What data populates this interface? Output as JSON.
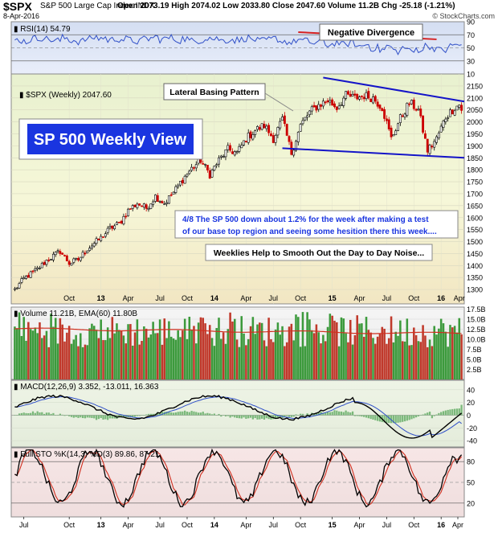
{
  "header": {
    "symbol": "$SPX",
    "name": "S&P 500 Large Cap Index",
    "exchange": "INDX",
    "date": "8-Apr-2016",
    "ohlc": "Open 2073.19  High 2074.02  Low 2033.80  Close 2047.60  Volume 11.2B  Chg -25.18 (-1.21%)",
    "credit": "© StockCharts.com"
  },
  "colors": {
    "up": "#000000",
    "down": "#cc0000",
    "vol_up": "#3c9a3c",
    "vol_down": "#c0392b",
    "trend": "#1414c8",
    "rsi_line": "#3050c8",
    "macd_line": "#000000",
    "signal_line": "#3050c8",
    "k_line": "#000000",
    "d_line": "#d03020",
    "ema_line": "#d03020",
    "divergence": "#d62020",
    "title_box_bg": "#1a35e0"
  },
  "chart_data": [
    {
      "type": "line",
      "panel": "RSI",
      "label": "RSI(14) 54.79",
      "ylim": [
        10,
        90
      ],
      "ticks": [
        10,
        30,
        50,
        70,
        90
      ],
      "series": [
        {
          "name": "RSI(14)",
          "values": [
            62,
            60,
            64,
            66,
            63,
            61,
            65,
            62,
            60,
            63,
            66,
            65,
            62,
            64,
            63,
            61,
            60,
            64,
            66,
            63,
            65,
            62,
            64,
            60,
            62,
            66,
            64,
            61,
            63,
            62,
            65,
            63,
            60,
            62,
            64,
            60,
            58,
            62,
            60,
            57,
            60,
            55,
            58,
            54,
            57,
            52,
            55,
            50,
            47,
            52,
            45,
            50,
            44,
            48,
            53,
            50,
            46,
            52,
            55,
            54.79
          ]
        }
      ],
      "annotation": "Negative Divergence"
    },
    {
      "type": "candlestick",
      "panel": "Price",
      "label": "$SPX (Weekly) 2047.60",
      "title": "SP 500 Weekly View",
      "ylim": [
        1240,
        2200
      ],
      "ticks": [
        1300,
        1350,
        1400,
        1450,
        1500,
        1550,
        1600,
        1650,
        1700,
        1750,
        1800,
        1850,
        1900,
        1950,
        2000,
        2050,
        2100,
        2150
      ],
      "x_labels": [
        "Oct",
        "13",
        "Apr",
        "Jul",
        "Oct",
        "14",
        "Apr",
        "Jul",
        "Oct",
        "15",
        "Apr",
        "Jul",
        "Oct",
        "16",
        "Apr"
      ],
      "close_anchors": [
        [
          0,
          1300
        ],
        [
          4,
          1345
        ],
        [
          10,
          1385
        ],
        [
          14,
          1420
        ],
        [
          20,
          1460
        ],
        [
          24,
          1410
        ],
        [
          28,
          1425
        ],
        [
          32,
          1470
        ],
        [
          38,
          1515
        ],
        [
          42,
          1555
        ],
        [
          46,
          1575
        ],
        [
          50,
          1630
        ],
        [
          54,
          1660
        ],
        [
          58,
          1640
        ],
        [
          62,
          1690
        ],
        [
          66,
          1660
        ],
        [
          70,
          1705
        ],
        [
          74,
          1760
        ],
        [
          78,
          1805
        ],
        [
          82,
          1840
        ],
        [
          86,
          1780
        ],
        [
          90,
          1840
        ],
        [
          94,
          1885
        ],
        [
          98,
          1870
        ],
        [
          102,
          1930
        ],
        [
          106,
          1965
        ],
        [
          110,
          1985
        ],
        [
          114,
          1930
        ],
        [
          118,
          2010
        ],
        [
          122,
          1870
        ],
        [
          126,
          1985
        ],
        [
          130,
          2040
        ],
        [
          134,
          2070
        ],
        [
          138,
          2090
        ],
        [
          142,
          2060
        ],
        [
          146,
          2110
        ],
        [
          150,
          2100
        ],
        [
          154,
          2110
        ],
        [
          158,
          2100
        ],
        [
          162,
          2060
        ],
        [
          166,
          1930
        ],
        [
          170,
          2015
        ],
        [
          174,
          2080
        ],
        [
          178,
          2050
        ],
        [
          182,
          1880
        ],
        [
          186,
          1930
        ],
        [
          190,
          2020
        ],
        [
          194,
          2060
        ],
        [
          196,
          2072
        ],
        [
          197,
          2047.6
        ]
      ],
      "notes": [
        "Lateral Basing Pattern",
        "4/8  The SP 500 down about 1.2% for the week after making a test of our base top region and seeing some hesition there this week....",
        "Weeklies Help to Smooth Out the Day to Day Noise..."
      ]
    },
    {
      "type": "bar",
      "panel": "Volume",
      "label": "Volume 11.21B, EMA(60) 11.80B",
      "ylim": [
        0,
        18
      ],
      "ticks": [
        "2.5B",
        "5.0B",
        "7.5B",
        "10.0B",
        "12.5B",
        "15.0B",
        "17.5B"
      ],
      "tick_values": [
        2.5,
        5,
        7.5,
        10,
        12.5,
        15,
        17.5
      ],
      "ema": 11.8,
      "last": 11.21
    },
    {
      "type": "line",
      "panel": "MACD",
      "label": "MACD(12,26,9) 3.352, -13.011, 16.363",
      "ylim": [
        -50,
        55
      ],
      "ticks": [
        -40,
        -20,
        0,
        20,
        40
      ],
      "series": [
        {
          "name": "MACD(12,26,9)",
          "last": 3.352
        },
        {
          "name": "Signal",
          "last": -13.011
        },
        {
          "name": "Histogram",
          "last": 16.363
        }
      ]
    },
    {
      "type": "line",
      "panel": "Full STO",
      "label": "Full STO %K(14,3) %D(3) 89.86, 87.21",
      "ylim": [
        0,
        100
      ],
      "ticks": [
        20,
        50,
        80
      ],
      "series": [
        {
          "name": "%K(14,3)",
          "last": 89.86
        },
        {
          "name": "%D(3)",
          "last": 87.21
        }
      ],
      "x_labels": [
        "Jul",
        "Oct",
        "13",
        "Apr",
        "Jul",
        "Oct",
        "14",
        "Apr",
        "Jul",
        "Oct",
        "15",
        "Apr",
        "Jul",
        "Oct",
        "16",
        "Apr"
      ]
    }
  ]
}
